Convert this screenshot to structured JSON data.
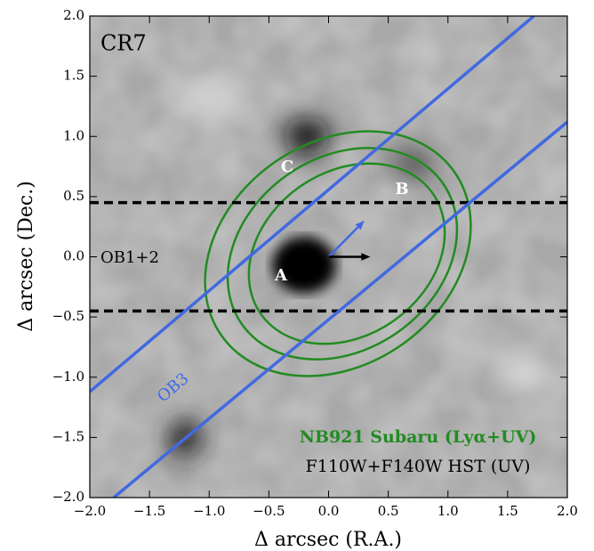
{
  "chart_data": {
    "type": "image",
    "title": "CR7",
    "xlabel": "Δ arcsec (R.A.)",
    "ylabel": "Δ arcsec (Dec.)",
    "xlim": [
      -2,
      2
    ],
    "ylim": [
      -2,
      2
    ],
    "xticks": [
      {
        "value": -2,
        "label": "−2.0"
      },
      {
        "value": -1.5,
        "label": "−1.5"
      },
      {
        "value": -1,
        "label": "−1.0"
      },
      {
        "value": -0.5,
        "label": "−0.5"
      },
      {
        "value": 0,
        "label": "0.0"
      },
      0.5,
      {
        "value": 1,
        "label": "1.0"
      },
      1.5,
      {
        "value": 2,
        "label": "2.0"
      }
    ],
    "yticks": [
      {
        "value": -2,
        "label": "−2.0"
      },
      {
        "value": -1.5,
        "label": "−1.5"
      },
      {
        "value": -1,
        "label": "−1.0"
      },
      {
        "value": -0.5,
        "label": "−0.5"
      },
      {
        "value": 0,
        "label": "0.0"
      },
      0.5,
      {
        "value": 1,
        "label": "1.0"
      },
      1.5,
      {
        "value": 2,
        "label": "2.0"
      }
    ],
    "hlines": {
      "name": "OB1+2",
      "color": "#000000",
      "y": [
        0.45,
        -0.45
      ]
    },
    "slit": {
      "name": "OB3",
      "color": "#4169e1",
      "x": [
        [
          -2,
          1.72
        ],
        [
          -1.8,
          2
        ]
      ],
      "y": [
        [
          -1.12,
          2
        ],
        [
          -2,
          1.12
        ]
      ]
    },
    "arrows": [
      {
        "color": "#4169e1",
        "x": [
          0,
          0.3
        ],
        "y": [
          0,
          0.3
        ]
      },
      {
        "color": "#000000",
        "x": [
          0,
          0.35
        ],
        "y": [
          0,
          0
        ]
      }
    ],
    "sources": [
      "A",
      "B",
      "C"
    ],
    "legend": [
      {
        "name": "NB921 Subaru (Lyα+UV)",
        "color": "#228b22"
      },
      {
        "name": "F110W+F140W HST (UV)",
        "color": "#000000"
      }
    ]
  }
}
